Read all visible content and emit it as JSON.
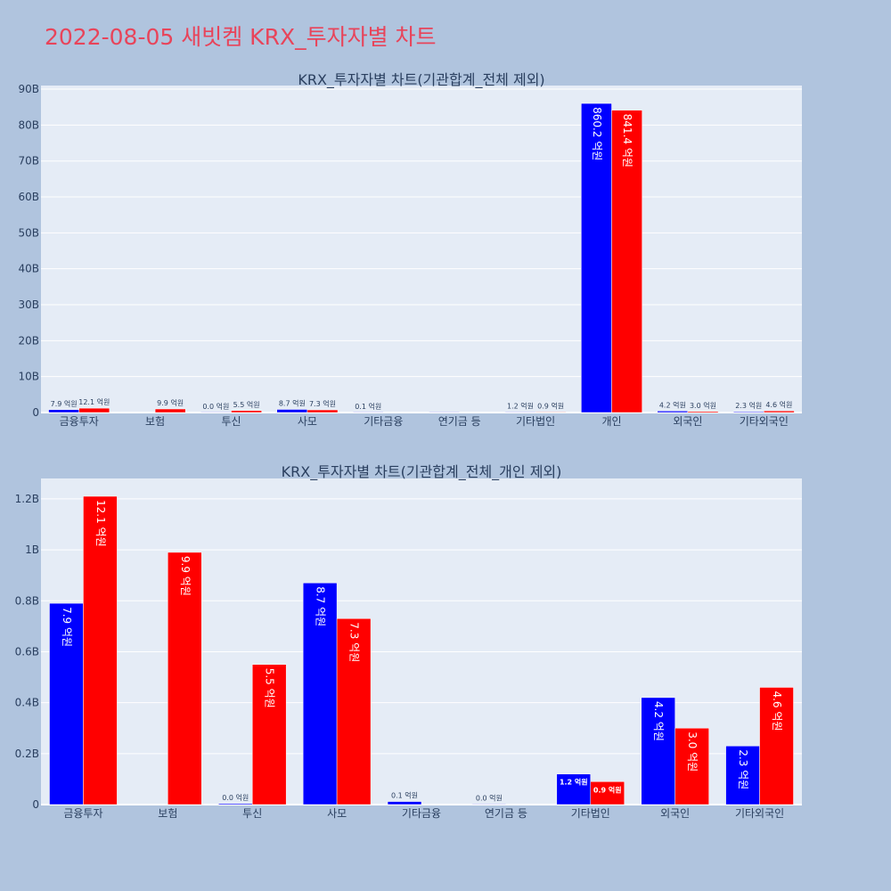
{
  "page_title": "2022-08-05 새빗켐 KRX_투자자별 차트",
  "chart_data": [
    {
      "type": "bar",
      "title": "KRX_투자자별 차트(기관합계_전체 제외)",
      "categories": [
        "금융투자",
        "보험",
        "투신",
        "사모",
        "기타금융",
        "연기금 등",
        "기타법인",
        "개인",
        "외국인",
        "기타외국인"
      ],
      "series": [
        {
          "color": "#0000ff",
          "values": [
            790000000,
            null,
            4000000,
            870000000,
            12000000,
            1000000,
            120000000,
            86020000000,
            420000000,
            230000000
          ],
          "labels": [
            "7.9 억원",
            "",
            "0.0 억원",
            "8.7 억원",
            "0.1 억원",
            "",
            "1.2 억원",
            "860.2 억원",
            "4.2 억원",
            "2.3 억원"
          ]
        },
        {
          "color": "#ff0000",
          "values": [
            1210000000,
            990000000,
            550000000,
            730000000,
            null,
            null,
            90000000,
            84140000000,
            300000000,
            460000000
          ],
          "labels": [
            "12.1 억원",
            "9.9 억원",
            "5.5 억원",
            "7.3 억원",
            "",
            "",
            "0.9 억원",
            "841.4 억원",
            "3.0 억원",
            "4.6 억원"
          ]
        }
      ],
      "ylim": [
        0,
        91000000000
      ],
      "yticks": [
        0,
        10000000000,
        20000000000,
        30000000000,
        40000000000,
        50000000000,
        60000000000,
        70000000000,
        80000000000,
        90000000000
      ],
      "ytick_labels": [
        "0",
        "10B",
        "20B",
        "30B",
        "40B",
        "50B",
        "60B",
        "70B",
        "80B",
        "90B"
      ]
    },
    {
      "type": "bar",
      "title": "KRX_투자자별 차트(기관합계_전체_개인 제외)",
      "categories": [
        "금융투자",
        "보험",
        "투신",
        "사모",
        "기타금융",
        "연기금 등",
        "기타법인",
        "외국인",
        "기타외국인"
      ],
      "series": [
        {
          "color": "#0000ff",
          "values": [
            790000000,
            null,
            4000000,
            870000000,
            12000000,
            1000000,
            120000000,
            420000000,
            230000000
          ],
          "labels": [
            "7.9 억원",
            "",
            "0.0 억원",
            "8.7 억원",
            "0.1 억원",
            "0.0 억원",
            "1.2 억원",
            "4.2 억원",
            "2.3 억원"
          ]
        },
        {
          "color": "#ff0000",
          "values": [
            1210000000,
            990000000,
            550000000,
            730000000,
            null,
            null,
            90000000,
            300000000,
            460000000
          ],
          "labels": [
            "12.1 억원",
            "9.9 억원",
            "5.5 억원",
            "7.3 억원",
            "",
            "",
            "0.9 억원",
            "3.0 억원",
            "4.6 억원"
          ]
        }
      ],
      "ylim": [
        0,
        1280000000
      ],
      "yticks": [
        0,
        200000000,
        400000000,
        600000000,
        800000000,
        1000000000,
        1200000000
      ],
      "ytick_labels": [
        "0",
        "0.2B",
        "0.4B",
        "0.6B",
        "0.8B",
        "1B",
        "1.2B"
      ]
    }
  ]
}
